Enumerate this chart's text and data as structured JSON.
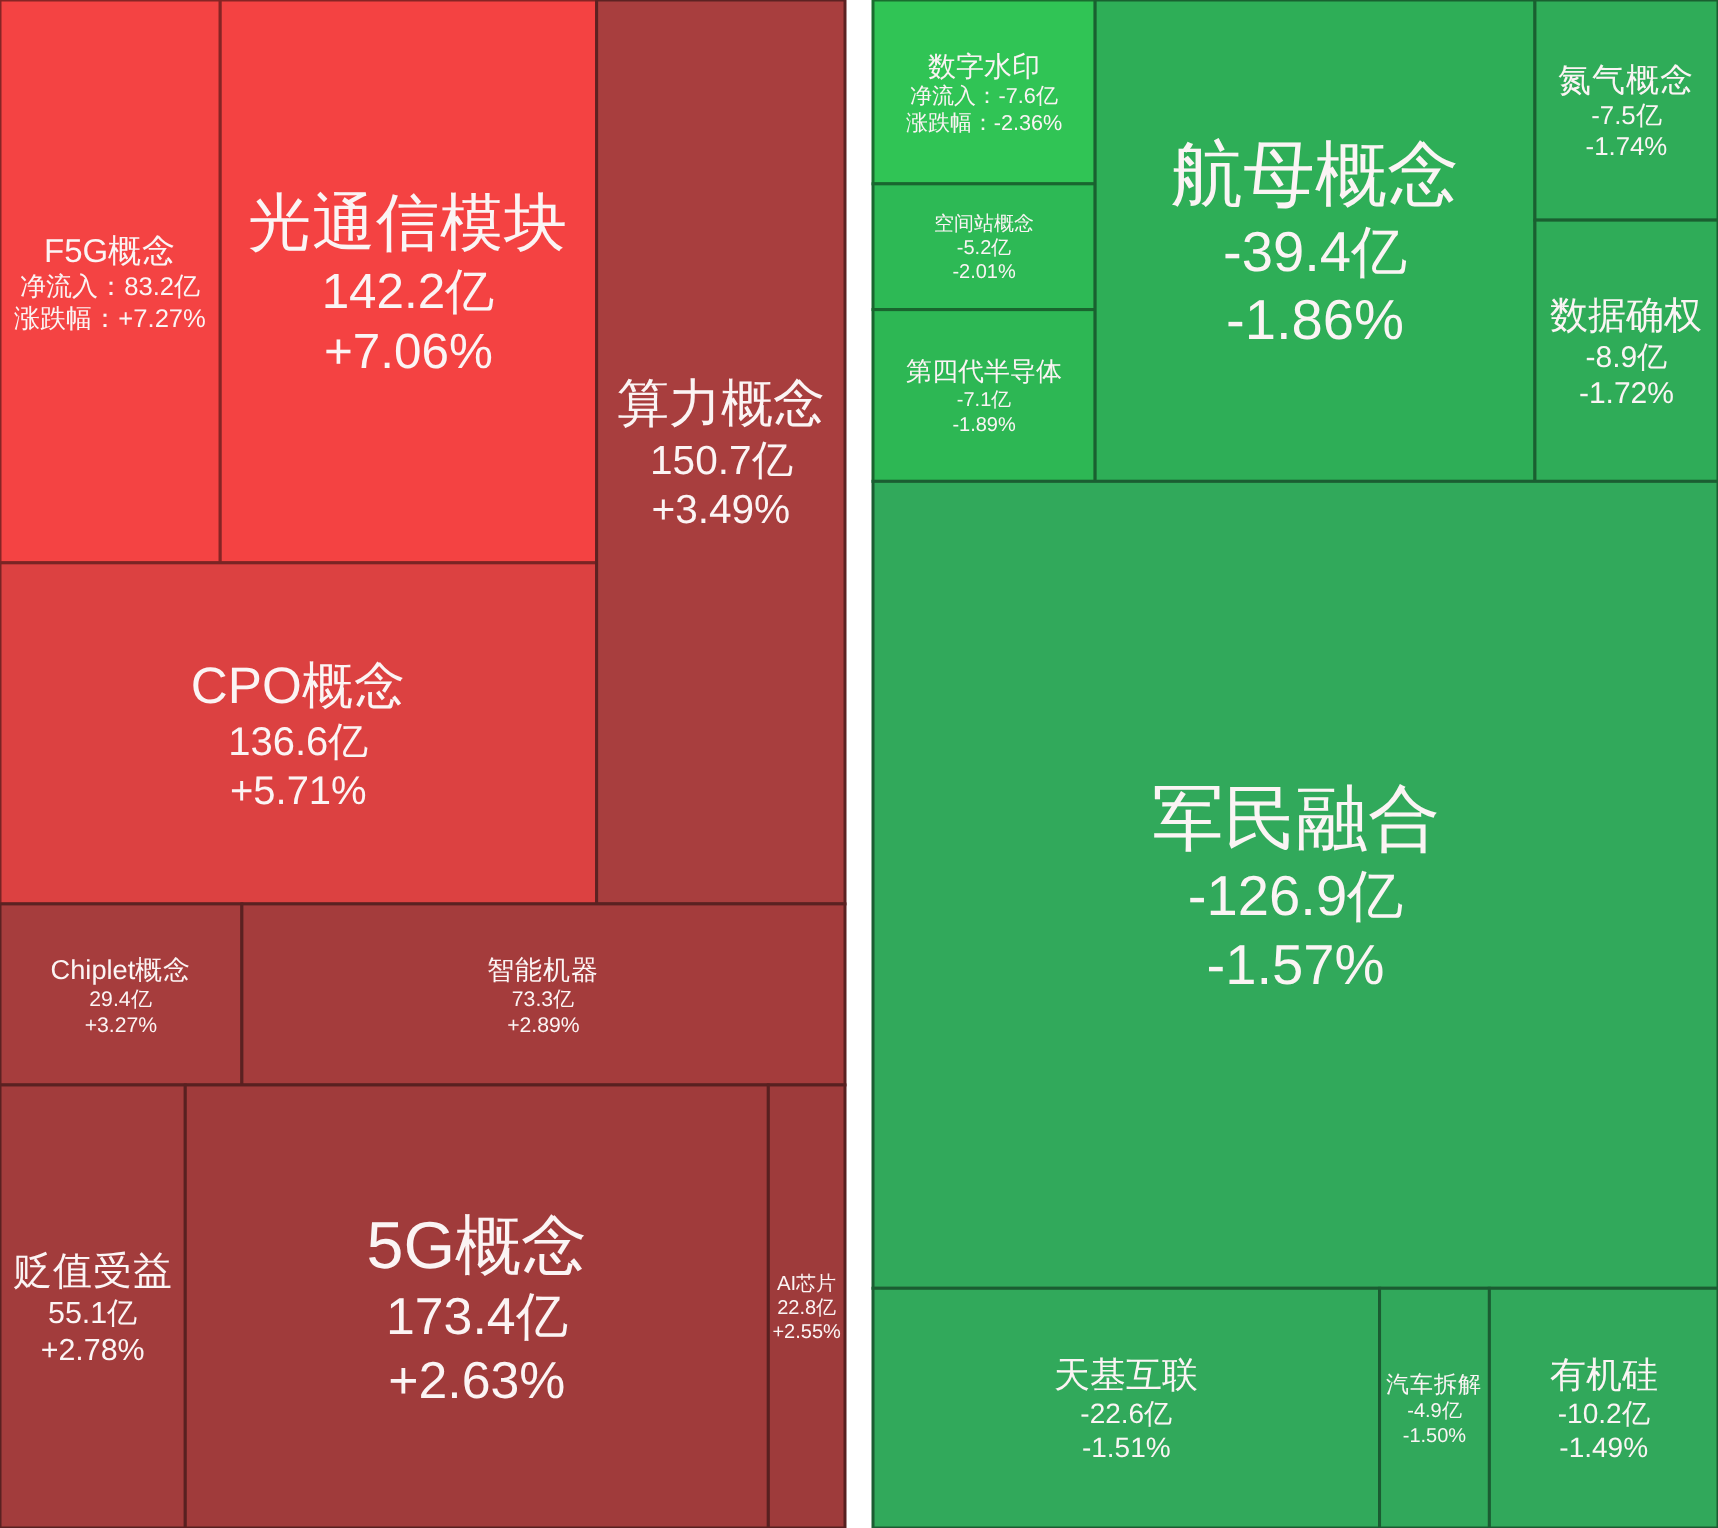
{
  "chart_data": [
    {
      "type": "other",
      "categories": [
        "F5G概念",
        "光通信模块",
        "算力概念",
        "CPO概念",
        "Chiplet概念",
        "智能机器",
        "贬值受益",
        "5G概念",
        "AI芯片"
      ],
      "series": [
        {
          "colors": [
            "#f44343",
            "#f44242",
            "#a83e3e",
            "#dc4141",
            "#a63d3d",
            "#a43c3c",
            "#a23c3c",
            "#a03b3b",
            "#9e3b3b"
          ],
          "values": [
            83.2,
            142.2,
            150.7,
            136.6,
            29.4,
            73.3,
            55.1,
            173.4,
            22.8
          ],
          "value_labels": [
            "净流入：83.2亿",
            "142.2亿",
            "150.7亿",
            "136.6亿",
            "29.4亿",
            "73.3亿",
            "55.1亿",
            "173.4亿",
            "22.8亿"
          ]
        },
        {
          "values": [
            7.27,
            7.06,
            3.49,
            5.71,
            3.27,
            2.89,
            2.78,
            2.63,
            2.55
          ],
          "value_labels": [
            "涨跌幅：+7.27%",
            "+7.06%",
            "+3.49%",
            "+5.71%",
            "+3.27%",
            "+2.89%",
            "+2.78%",
            "+2.63%",
            "+2.55%"
          ]
        }
      ]
    },
    {
      "type": "other",
      "categories": [
        "数字水印",
        "空间站概念",
        "第四代半导体",
        "航母概念",
        "氮气概念",
        "数据确权",
        "军民融合",
        "天基互联",
        "汽车拆解",
        "有机硅"
      ],
      "series": [
        {
          "colors": [
            "#30c455",
            "#2db955",
            "#2db754",
            "#2eae57",
            "#2fac58",
            "#2fac58",
            "#31a95b",
            "#31a95b",
            "#31a85b",
            "#31a85b"
          ],
          "values": [
            -7.6,
            -5.2,
            -7.1,
            -39.4,
            -7.5,
            -8.9,
            -126.9,
            -22.6,
            -4.9,
            -10.2
          ],
          "value_labels": [
            "净流入：-7.6亿",
            "-5.2亿",
            "-7.1亿",
            "-39.4亿",
            "-7.5亿",
            "-8.9亿",
            "-126.9亿",
            "-22.6亿",
            "-4.9亿",
            "-10.2亿"
          ]
        },
        {
          "values": [
            -2.36,
            -2.01,
            -1.89,
            -1.86,
            -1.74,
            -1.72,
            -1.57,
            -1.51,
            -1.5,
            -1.49
          ],
          "value_labels": [
            "涨跌幅：-2.36%",
            "-2.01%",
            "-1.89%",
            "-1.86%",
            "-1.74%",
            "-1.72%",
            "-1.57%",
            "-1.51%",
            "-1.50%",
            "-1.49%"
          ]
        }
      ]
    }
  ]
}
